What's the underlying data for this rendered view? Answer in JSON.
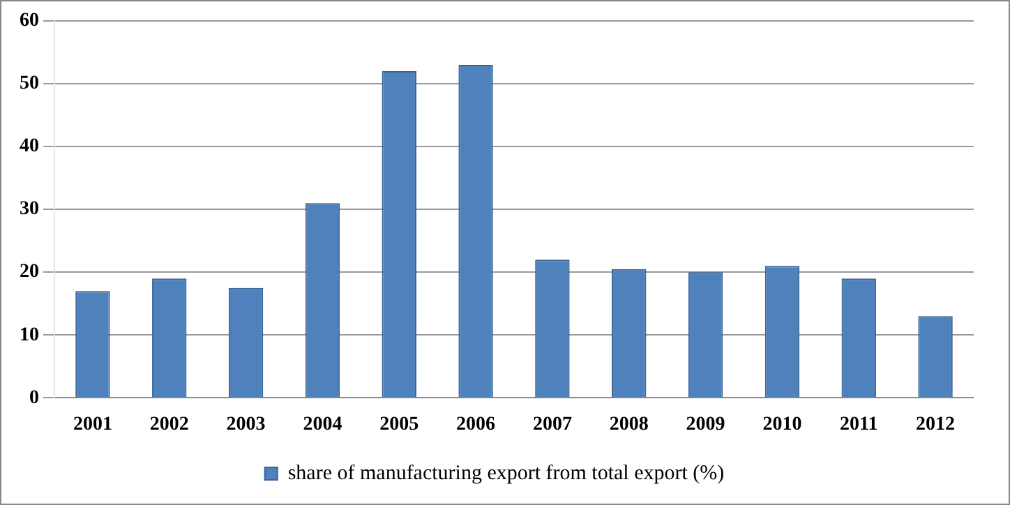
{
  "chart_data": {
    "type": "bar",
    "categories": [
      "2001",
      "2002",
      "2003",
      "2004",
      "2005",
      "2006",
      "2007",
      "2008",
      "2009",
      "2010",
      "2011",
      "2012"
    ],
    "series": [
      {
        "name": "share of manufacturing export from total export (%)",
        "color": "#4f81bd",
        "values": [
          17,
          19,
          17.5,
          31,
          52,
          53,
          22,
          20.5,
          20,
          21,
          19,
          13
        ]
      }
    ],
    "ylim": [
      0,
      60
    ],
    "yticks": [
      0,
      10,
      20,
      30,
      40,
      50,
      60
    ],
    "grid": "y",
    "legend": "bottom"
  }
}
